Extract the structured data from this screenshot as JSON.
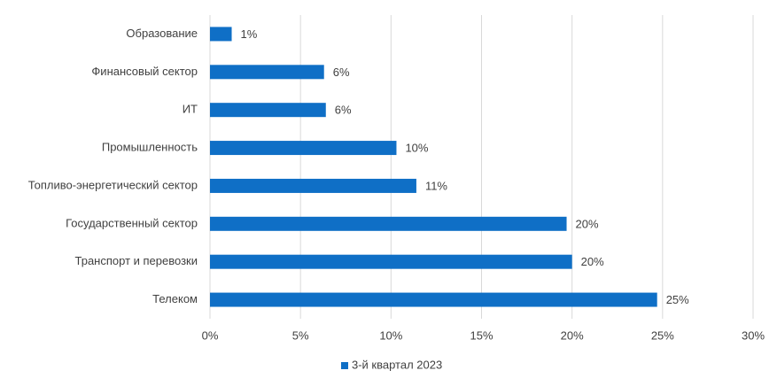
{
  "chart_data": {
    "type": "hbar",
    "categories": [
      "Образование",
      "Финансовый сектор",
      "ИТ",
      "Промышленность",
      "Топливо-энергетический сектор",
      "Государственный сектор",
      "Транспорт и перевозки",
      "Телеком"
    ],
    "series": [
      {
        "name": "3-й квартал 2023",
        "color": "#0f6fc6",
        "values": [
          1.2,
          6.3,
          6.4,
          10.3,
          11.4,
          19.7,
          20.0,
          24.7
        ],
        "value_labels": [
          "1%",
          "6%",
          "6%",
          "10%",
          "11%",
          "20%",
          "20%",
          "25%"
        ]
      }
    ],
    "xlim": [
      0,
      30
    ],
    "xticks": [
      {
        "value": 0,
        "label": "0%"
      },
      {
        "value": 5,
        "label": "5%"
      },
      {
        "value": 10,
        "label": "10%"
      },
      {
        "value": 15,
        "label": "15%"
      },
      {
        "value": 20,
        "label": "20%"
      },
      {
        "value": 25,
        "label": "25%"
      },
      {
        "value": 30,
        "label": "30%"
      }
    ],
    "grid": true,
    "legend": "bottom"
  }
}
